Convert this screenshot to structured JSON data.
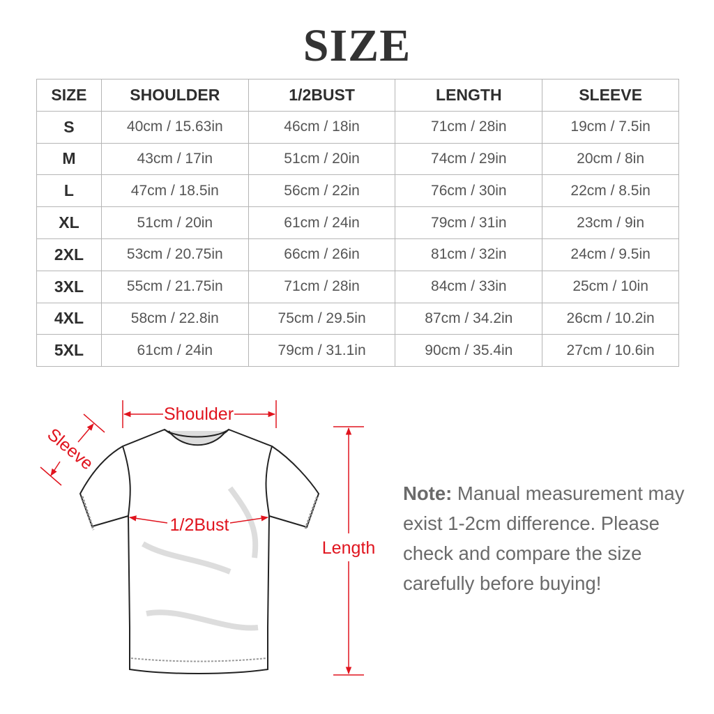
{
  "title": "SIZE",
  "table": {
    "headers": [
      "SIZE",
      "SHOULDER",
      "1/2BUST",
      "LENGTH",
      "SLEEVE"
    ],
    "rows": [
      [
        "S",
        "40cm / 15.63in",
        "46cm / 18in",
        "71cm / 28in",
        "19cm / 7.5in"
      ],
      [
        "M",
        "43cm / 17in",
        "51cm / 20in",
        "74cm / 29in",
        "20cm / 8in"
      ],
      [
        "L",
        "47cm / 18.5in",
        "56cm / 22in",
        "76cm / 30in",
        "22cm / 8.5in"
      ],
      [
        "XL",
        "51cm / 20in",
        "61cm / 24in",
        "79cm / 31in",
        "23cm / 9in"
      ],
      [
        "2XL",
        "53cm / 20.75in",
        "66cm / 26in",
        "81cm / 32in",
        "24cm / 9.5in"
      ],
      [
        "3XL",
        "55cm / 21.75in",
        "71cm / 28in",
        "84cm / 33in",
        "25cm / 10in"
      ],
      [
        "4XL",
        "58cm / 22.8in",
        "75cm / 29.5in",
        "87cm / 34.2in",
        "26cm / 10.2in"
      ],
      [
        "5XL",
        "61cm / 24in",
        "79cm / 31.1in",
        "90cm / 35.4in",
        "27cm / 10.6in"
      ]
    ]
  },
  "diagram": {
    "shoulder_label": "Shoulder",
    "sleeve_label": "Sleeve",
    "bust_label": "1/2Bust",
    "length_label": "Length",
    "arrow_color": "#e0141e"
  },
  "note": {
    "label": "Note:",
    "text": "Manual measurement may exist 1-2cm difference. Please check and compare the size carefully before buying!"
  }
}
